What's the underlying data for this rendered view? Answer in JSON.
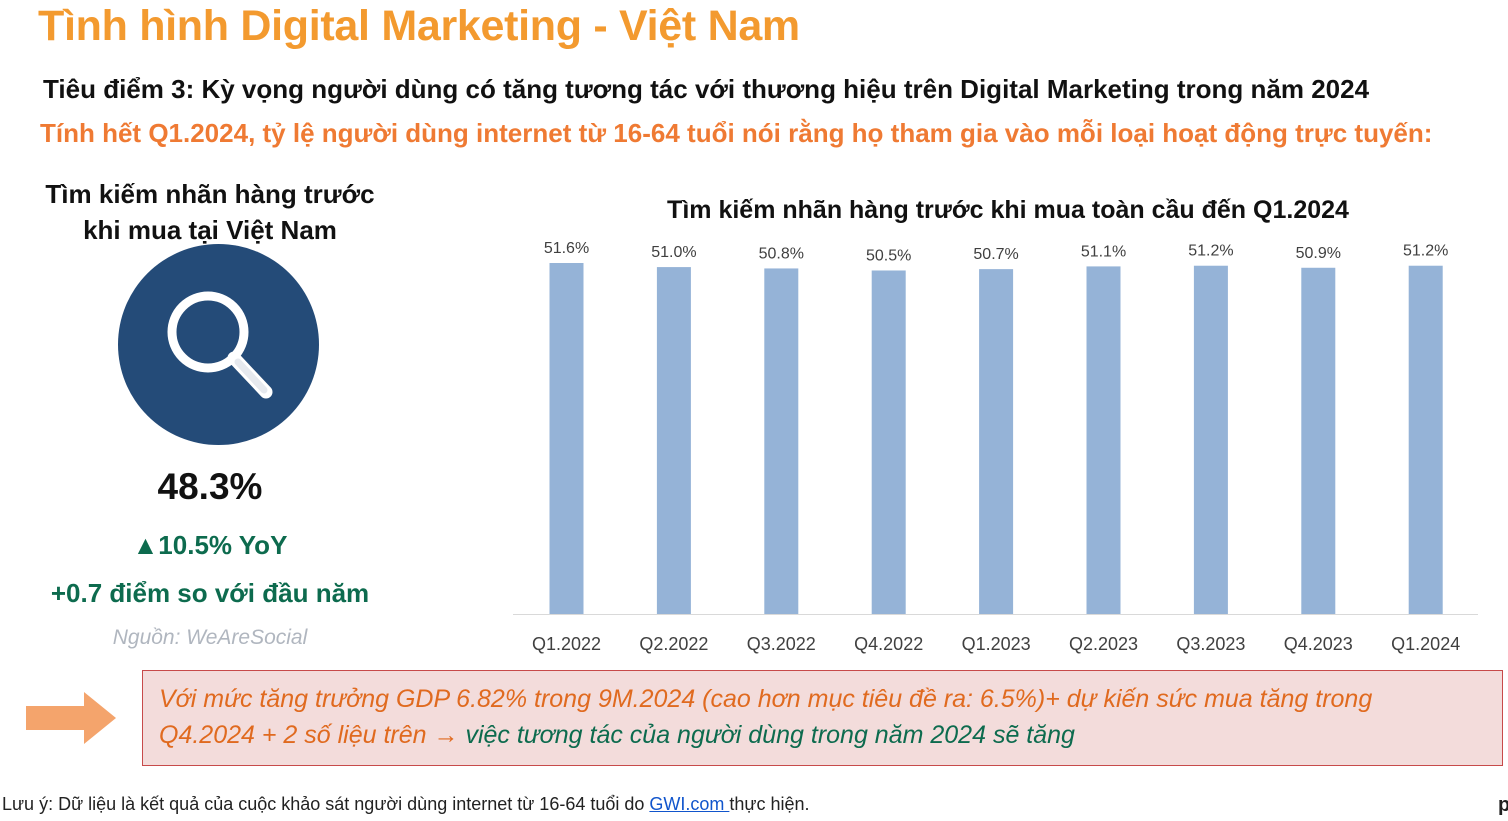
{
  "header": {
    "title": "Tình hình Digital Marketing - Việt Nam",
    "focus_title": "Tiêu điểm 3: Kỳ vọng người dùng có tăng tương tác với thương hiệu trên Digital Marketing trong năm 2024",
    "focus_subtitle": "Tính hết Q1.2024, tỷ lệ người dùng internet từ 16-64 tuổi nói rằng họ tham gia vào mỗi loại hoạt động trực tuyến:"
  },
  "vietnam_panel": {
    "title_line1": "Tìm kiếm nhãn hàng trước",
    "title_line2": "khi mua tại Việt Nam",
    "icon": "search-icon",
    "value": "48.3%",
    "yoy": "▲10.5% YoY",
    "points": "+0.7 điểm so với đầu năm",
    "source": "Nguồn: WeAreSocial"
  },
  "chart_data": {
    "type": "bar",
    "title": "Tìm kiếm nhãn hàng trước khi mua toàn cầu đến Q1.2024",
    "categories": [
      "Q1.2022",
      "Q2.2022",
      "Q3.2022",
      "Q4.2022",
      "Q1.2023",
      "Q2.2023",
      "Q3.2023",
      "Q4.2023",
      "Q1.2024"
    ],
    "values": [
      51.6,
      51.0,
      50.8,
      50.5,
      50.7,
      51.1,
      51.2,
      50.9,
      51.2
    ],
    "labels": [
      "51.6%",
      "51.0%",
      "50.8%",
      "50.5%",
      "50.7%",
      "51.1%",
      "51.2%",
      "50.9%",
      "51.2%"
    ],
    "ylim": [
      0,
      51.6
    ],
    "xlabel": "",
    "ylabel": "",
    "grid": false,
    "bar_color": "#95b3d7"
  },
  "note": {
    "line1": "Với mức tăng trưởng GDP 6.82% trong 9M.2024 (cao hơn mục tiêu đề ra: 6.5%)+ dự kiến sức mua tăng trong",
    "line2_part1": "Q4.2024 + 2 số liệu trên → ",
    "line2_part2": "việc tương tác của người dùng trong năm 2024 sẽ tăng"
  },
  "footnote": {
    "prefix": "Lưu ý: Dữ liệu là kết quả của cuộc khảo sát người dùng internet từ 16-64 tuổi do ",
    "link": "GWI.com ",
    "suffix": "thực hiện."
  },
  "corner_text": "p",
  "colors": {
    "title": "#f39a2f",
    "subtitle": "#ef7a33",
    "green": "#0d6b4e",
    "navy": "#244b78",
    "bar": "#95b3d7",
    "arrow": "#f4a46c",
    "note_bg": "#f3dcdb",
    "note_border": "#c74a4a"
  }
}
